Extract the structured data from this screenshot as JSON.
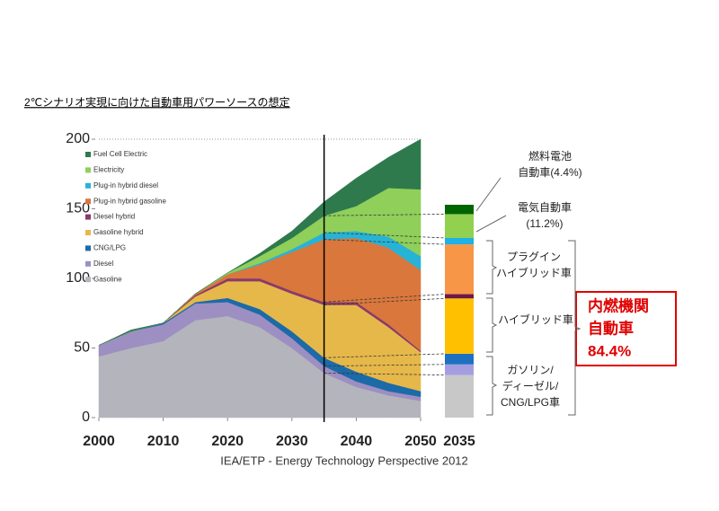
{
  "chart_data": [
    {
      "type": "stacked-area",
      "title": "2℃シナリオ実現に向けた自動車用パワーソースの想定",
      "source": "IEA/ETP  -  Energy Technology Perspective 2012",
      "x": [
        2000,
        2005,
        2010,
        2015,
        2020,
        2025,
        2030,
        2035,
        2040,
        2045,
        2050
      ],
      "xlim": [
        2000,
        2050
      ],
      "xticks": [
        2000,
        2010,
        2020,
        2030,
        2040,
        2050
      ],
      "ylim": [
        0,
        200
      ],
      "yticks": [
        0,
        50,
        100,
        150,
        200
      ],
      "legend": "upper left",
      "series": [
        {
          "name": "Gasoline",
          "color": "#b4b4bc",
          "values": [
            44,
            50,
            55,
            70,
            73,
            65,
            50,
            32,
            22,
            16,
            12
          ]
        },
        {
          "name": "Diesel",
          "color": "#9d8fc2",
          "values": [
            8,
            12,
            12,
            12,
            10,
            9,
            7,
            5,
            4,
            3,
            3
          ]
        },
        {
          "name": "CNG/LPG",
          "color": "#1c6aa8",
          "values": [
            0,
            0,
            1,
            1,
            3,
            4,
            5,
            6,
            7,
            6,
            4
          ]
        },
        {
          "name": "Gasoline hybrid",
          "color": "#e6b84a",
          "values": [
            0,
            0,
            0,
            4,
            12,
            20,
            27,
            38,
            48,
            40,
            28
          ]
        },
        {
          "name": "Diesel hybrid",
          "color": "#8a3a6a",
          "values": [
            0,
            0,
            0,
            1,
            2,
            2,
            2,
            2,
            2,
            2,
            1
          ]
        },
        {
          "name": "Plug-in hybrid gasoline",
          "color": "#d9773c",
          "values": [
            0,
            0,
            0,
            1,
            3,
            10,
            28,
            45,
            46,
            55,
            58
          ]
        },
        {
          "name": "Plug-in hybrid diesel",
          "color": "#27b3d6",
          "values": [
            0,
            0,
            0,
            0,
            0,
            1,
            2,
            5,
            5,
            8,
            10
          ]
        },
        {
          "name": "Electricity",
          "color": "#8fcf5a",
          "values": [
            0,
            0,
            0,
            0,
            1,
            5,
            8,
            12,
            18,
            35,
            48
          ]
        },
        {
          "name": "Fuel Cell Electric",
          "color": "#2e7a4c",
          "values": [
            0,
            1,
            0,
            0,
            0,
            2,
            5,
            10,
            20,
            22,
            36
          ]
        }
      ]
    },
    {
      "type": "stacked-bar",
      "categories": [
        "2035"
      ],
      "series": [
        {
          "color": "#c8c8c8",
          "values": [
            20
          ]
        },
        {
          "color": "#a49ee0",
          "values": [
            5
          ]
        },
        {
          "color": "#1e70c0",
          "values": [
            5
          ]
        },
        {
          "color": "#ffc000",
          "values": [
            26
          ]
        },
        {
          "color": "#6e1848",
          "values": [
            2
          ]
        },
        {
          "color": "#f79646",
          "values": [
            23.4
          ]
        },
        {
          "color": "#1fb0e6",
          "values": [
            3
          ]
        },
        {
          "color": "#92d050",
          "values": [
            11.2
          ]
        },
        {
          "color": "#006400",
          "values": [
            4.4
          ]
        }
      ],
      "annotations": [
        [
          "燃料電池",
          "自動車(4.4%)"
        ],
        [
          "電気自動車",
          "(11.2%)"
        ],
        [
          "プラグイン",
          "ハイブリッド車"
        ],
        [
          "ハイブリッド車"
        ],
        [
          "ガソリン/",
          "ディーゼル/",
          "CNG/LPG車"
        ]
      ],
      "callout": [
        "内燃機関",
        "自動車",
        "84.4%"
      ]
    }
  ]
}
